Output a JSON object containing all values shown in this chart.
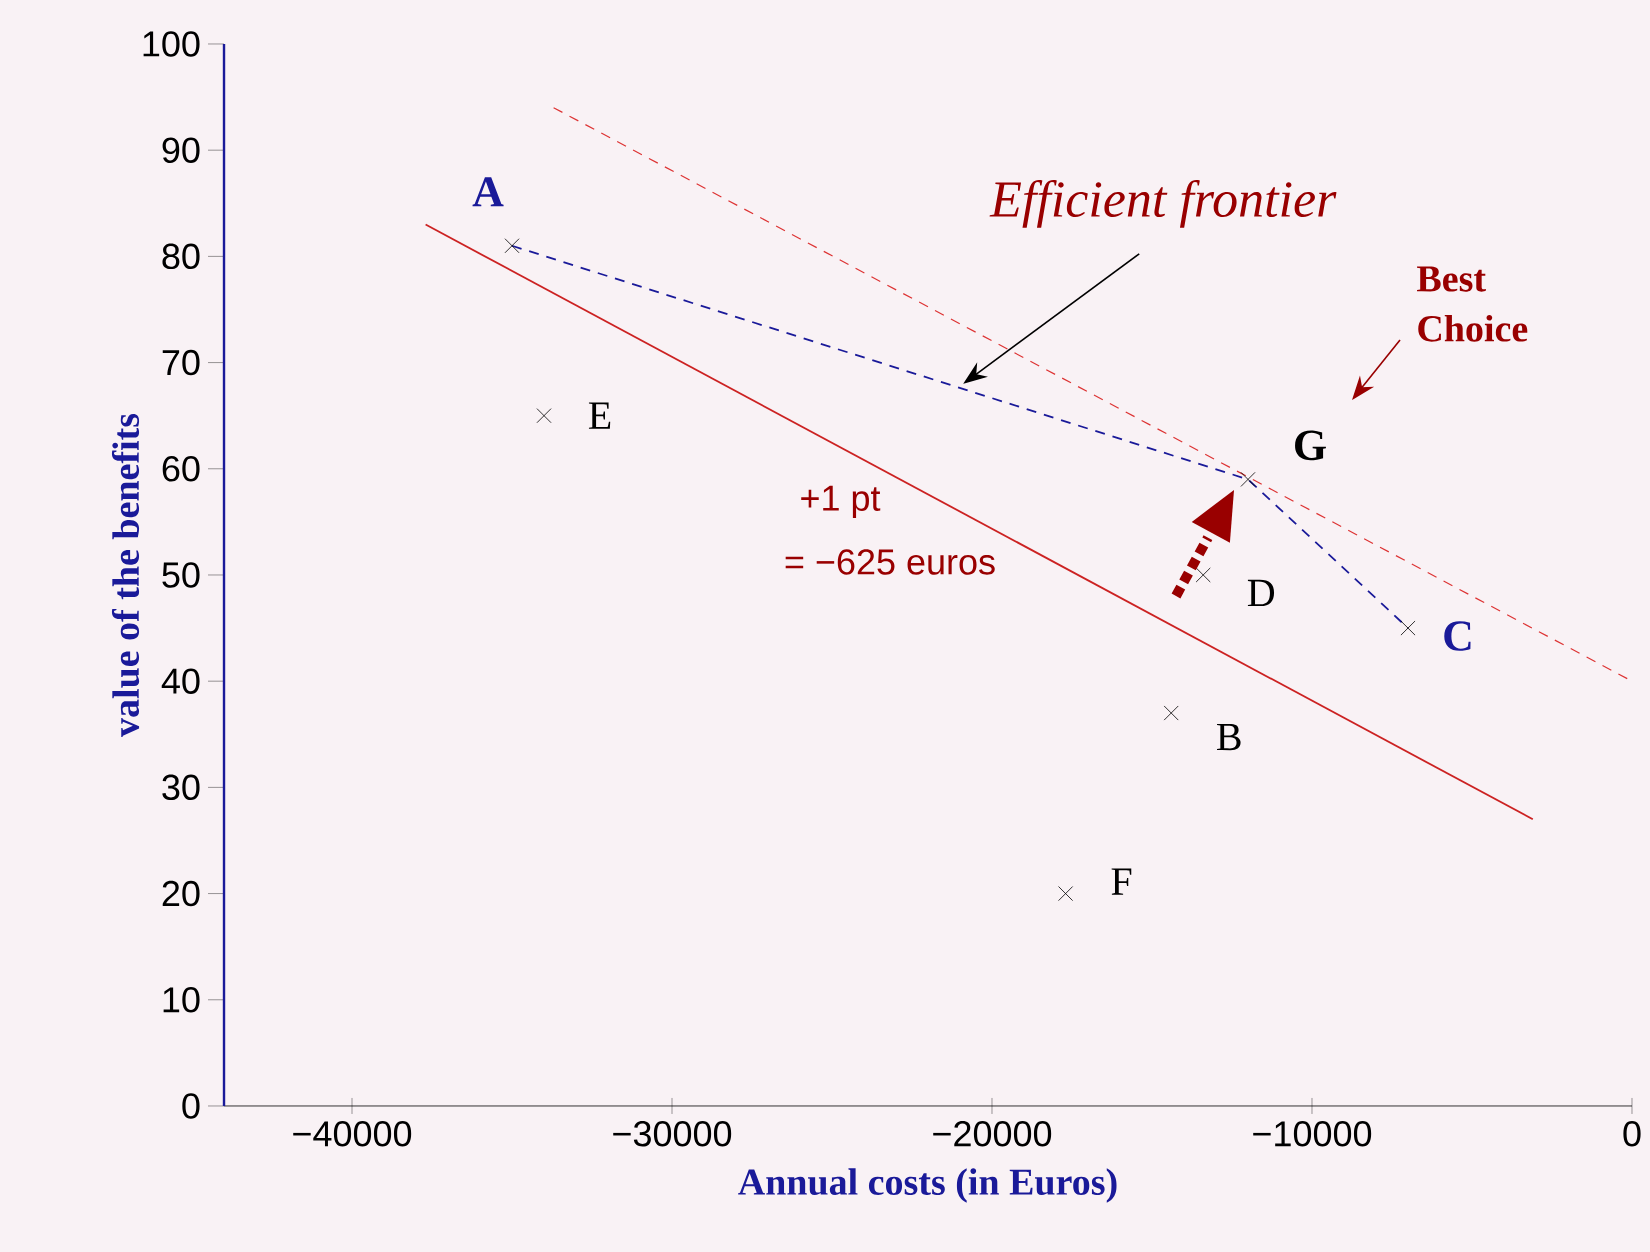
{
  "chart_data": {
    "type": "scatter",
    "xlabel": "Annual costs (in Euros)",
    "ylabel": "value of the benefits",
    "xlim": [
      -44000,
      0
    ],
    "ylim": [
      0,
      100
    ],
    "xticks": [
      {
        "value": -40000,
        "label": "−40000"
      },
      {
        "value": -30000,
        "label": "−30000"
      },
      {
        "value": -20000,
        "label": "−20000"
      },
      {
        "value": -10000,
        "label": "−10000"
      },
      0
    ],
    "yticks": [
      0,
      10,
      20,
      30,
      40,
      50,
      60,
      70,
      80,
      90,
      100
    ],
    "series": [
      {
        "color": "#000000",
        "marker": "cross",
        "x": [
          -35000,
          -14400,
          -7000,
          -13400,
          -34000,
          -17700,
          -12000
        ],
        "values": [
          81,
          37,
          45,
          50,
          65,
          20,
          59
        ]
      },
      {
        "type": "line",
        "color": "#1a1a99",
        "line_style": "dashed",
        "x": [
          -35000,
          -12000,
          -7000
        ],
        "values": [
          81,
          59,
          45
        ]
      },
      {
        "type": "line",
        "color": "#cc2222",
        "line_style": "solid",
        "x": [
          -37700,
          -3100
        ],
        "values": [
          83,
          27
        ]
      },
      {
        "type": "line",
        "color": "#dd3333",
        "line_style": "dashed",
        "x": [
          -33700,
          0
        ],
        "values": [
          94,
          40
        ]
      }
    ],
    "annotations": [
      {
        "text": "Efficient frontier",
        "x": -20900,
        "y": 68
      },
      "Best Choice",
      "+1 pt",
      "= −625 euros",
      {
        "text": "A",
        "x": -35000,
        "y": 81
      },
      {
        "text": "B",
        "x": -14400,
        "y": 37
      },
      {
        "text": "C",
        "x": -7000,
        "y": 45
      },
      {
        "text": "D",
        "x": -13400,
        "y": 50
      },
      {
        "text": "E",
        "x": -34000,
        "y": 65
      },
      {
        "text": "F",
        "x": -17700,
        "y": 20
      },
      {
        "text": "G",
        "x": -12000,
        "y": 59
      }
    ]
  }
}
